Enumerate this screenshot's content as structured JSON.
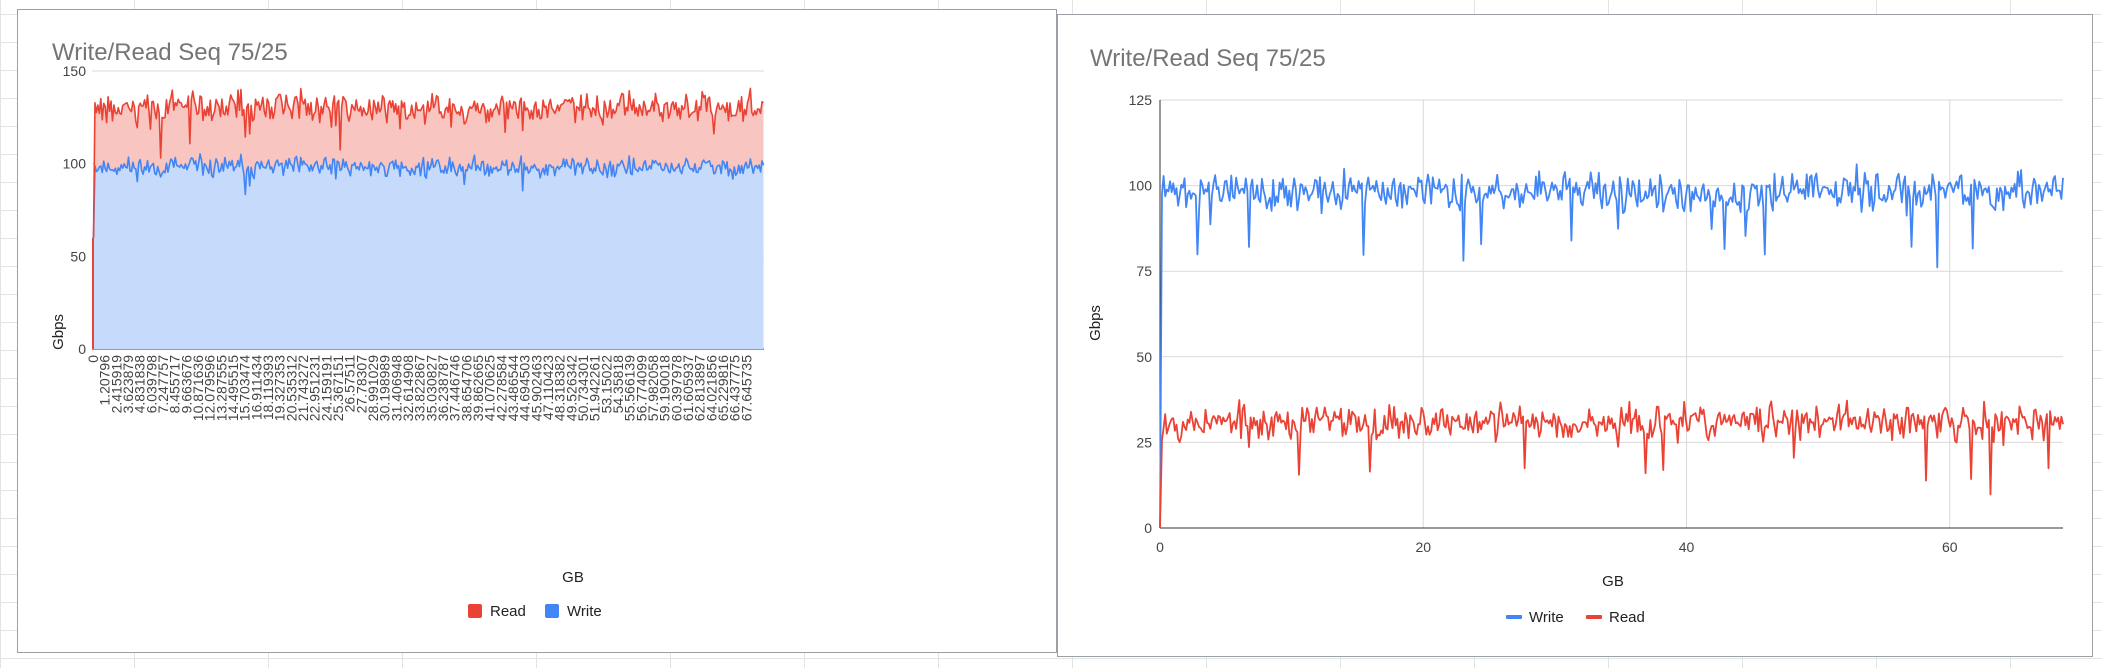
{
  "colors": {
    "read": "#ea4335",
    "write": "#4285f4",
    "read_fill": "#f8c5c0",
    "write_fill": "#c6dafc",
    "grid": "#d9d9d9"
  },
  "chart_data": [
    {
      "type": "area",
      "stacked": true,
      "title": "Write/Read Seq 75/25",
      "xlabel": "GB",
      "ylabel": "Gbps",
      "ylim": [
        0,
        150
      ],
      "yticks": [
        0,
        50,
        100,
        150
      ],
      "legend_position": "bottom",
      "legend": [
        "Read",
        "Write"
      ],
      "xtick_labels": [
        "0",
        "1.20796",
        "2.415919",
        "3.623879",
        "4.831838",
        "6.039798",
        "7.247757",
        "8.455717",
        "9.663676",
        "10.871636",
        "12.079596",
        "13.287555",
        "14.495515",
        "15.703474",
        "16.911434",
        "18.119393",
        "19.327353",
        "20.535312",
        "21.743272",
        "22.951231",
        "24.159191",
        "25.367151",
        "26.57511",
        "27.78307",
        "28.991029",
        "30.198989",
        "31.406948",
        "32.614908",
        "33.822867",
        "35.030827",
        "36.238787",
        "37.446746",
        "38.654706",
        "39.862665",
        "41.070625",
        "42.278584",
        "43.486544",
        "44.694503",
        "45.902463",
        "47.110423",
        "48.318382",
        "49.526342",
        "50.734301",
        "51.942261",
        "53.15022",
        "54.35818",
        "55.566139",
        "56.774099",
        "57.982058",
        "59.190018",
        "60.397978",
        "61.605937",
        "62.813897",
        "64.021856",
        "65.229816",
        "66.437775",
        "67.645735"
      ],
      "series": [
        {
          "name": "Write",
          "baseline": 98,
          "jitter": 3.5
        },
        {
          "name": "Read",
          "baseline": 32,
          "jitter": 3.5
        }
      ]
    },
    {
      "type": "line",
      "title": "Write/Read Seq 75/25",
      "xlabel": "GB",
      "ylabel": "Gbps",
      "xlim": [
        0,
        68.6
      ],
      "xticks": [
        0,
        20,
        40,
        60
      ],
      "ylim": [
        0,
        125
      ],
      "yticks": [
        0,
        25,
        50,
        75,
        100,
        125
      ],
      "legend_position": "bottom",
      "legend": [
        "Write",
        "Read"
      ],
      "series": [
        {
          "name": "Write",
          "baseline": 98,
          "jitter": 3.5
        },
        {
          "name": "Read",
          "baseline": 31,
          "jitter": 3.2
        }
      ]
    }
  ]
}
